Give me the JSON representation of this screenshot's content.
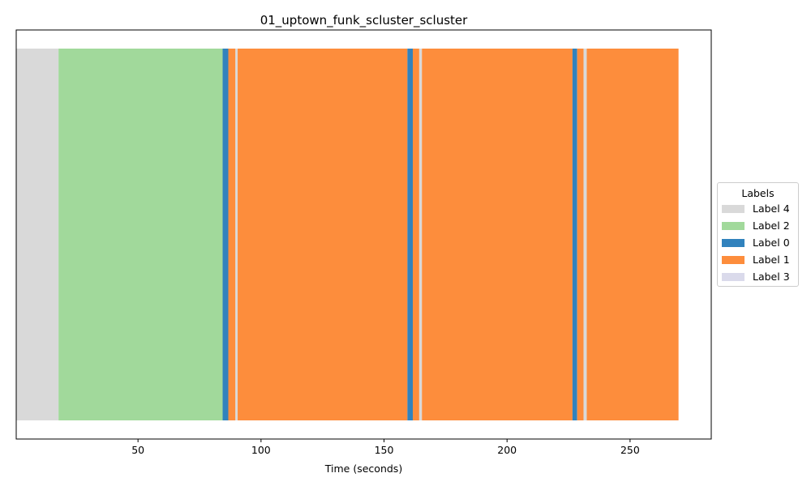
{
  "chart_data": {
    "type": "bar",
    "orientation": "horizontal-segments",
    "title": "01_uptown_funk_scluster_scluster",
    "xlabel": "Time (seconds)",
    "xlim": [
      0.5,
      283
    ],
    "xticks": [
      50,
      100,
      150,
      200,
      250
    ],
    "legend": {
      "title": "Labels",
      "placement": "center-right-outside",
      "entries": [
        {
          "label": "Label 4",
          "color": "#d9d9d9"
        },
        {
          "label": "Label 2",
          "color": "#a1d99b"
        },
        {
          "label": "Label 0",
          "color": "#3182bd"
        },
        {
          "label": "Label 1",
          "color": "#fd8d3c"
        },
        {
          "label": "Label 3",
          "color": "#dadaeb"
        }
      ]
    },
    "segments": [
      {
        "label": "Label 4",
        "start": 0.5,
        "end": 17.7
      },
      {
        "label": "Label 2",
        "start": 17.7,
        "end": 84.4
      },
      {
        "label": "Label 0",
        "start": 84.4,
        "end": 86.7
      },
      {
        "label": "Label 1",
        "start": 86.7,
        "end": 89.6
      },
      {
        "label": "Label 4",
        "start": 89.6,
        "end": 90.5
      },
      {
        "label": "Label 1",
        "start": 90.5,
        "end": 159.5
      },
      {
        "label": "Label 0",
        "start": 159.5,
        "end": 161.7
      },
      {
        "label": "Label 1",
        "start": 161.7,
        "end": 164.3
      },
      {
        "label": "Label 4",
        "start": 164.3,
        "end": 165.4
      },
      {
        "label": "Label 1",
        "start": 165.4,
        "end": 226.6
      },
      {
        "label": "Label 0",
        "start": 226.6,
        "end": 228.5
      },
      {
        "label": "Label 1",
        "start": 228.5,
        "end": 231.1
      },
      {
        "label": "Label 4",
        "start": 231.1,
        "end": 232.4
      },
      {
        "label": "Label 1",
        "start": 232.4,
        "end": 269.7
      }
    ]
  }
}
